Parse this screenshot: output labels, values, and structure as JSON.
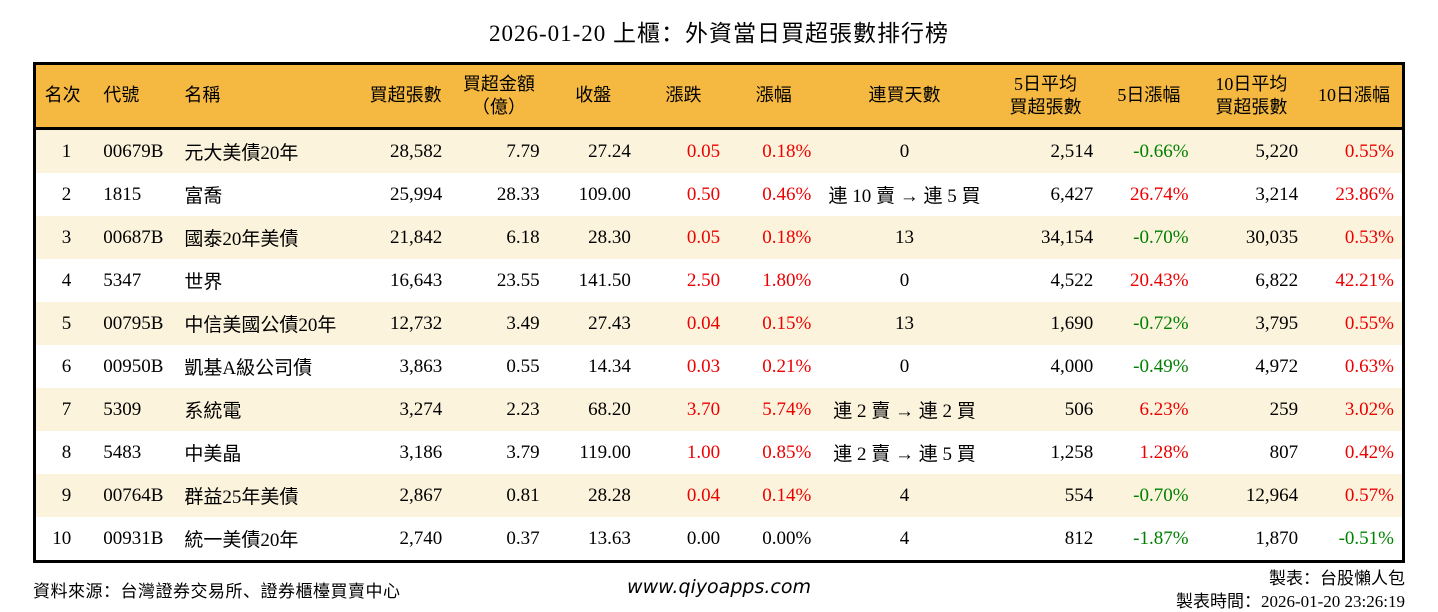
{
  "title": "2026-01-20 上櫃：外資當日買超張數排行榜",
  "colors": {
    "header_bg": "#F5B942",
    "stripe_bg": "#FCF3DC",
    "up_red": "#EC0000",
    "down_green": "#008000",
    "border": "#000000"
  },
  "table": {
    "headers": [
      "名次",
      "代號",
      "名稱",
      "買超張數",
      "買超金額\n（億）",
      "收盤",
      "漲跌",
      "漲幅",
      "連買天數",
      "5日平均\n買超張數",
      "5日漲幅",
      "10日平均\n買超張數",
      "10日漲幅"
    ],
    "rows": [
      {
        "rank": "1",
        "code": "00679B",
        "name": "元大美債20年",
        "vol": "28,582",
        "amt": "7.79",
        "close": "27.24",
        "chg": "0.05",
        "chg_c": "up",
        "pct": "0.18%",
        "pct_c": "up",
        "streak": "0",
        "avg5": "2,514",
        "pct5": "-0.66%",
        "pct5_c": "down",
        "avg10": "5,220",
        "pct10": "0.55%",
        "pct10_c": "up"
      },
      {
        "rank": "2",
        "code": "1815",
        "name": "富喬",
        "vol": "25,994",
        "amt": "28.33",
        "close": "109.00",
        "chg": "0.50",
        "chg_c": "up",
        "pct": "0.46%",
        "pct_c": "up",
        "streak": "連 10 賣 → 連 5 買",
        "avg5": "6,427",
        "pct5": "26.74%",
        "pct5_c": "up",
        "avg10": "3,214",
        "pct10": "23.86%",
        "pct10_c": "up"
      },
      {
        "rank": "3",
        "code": "00687B",
        "name": "國泰20年美債",
        "vol": "21,842",
        "amt": "6.18",
        "close": "28.30",
        "chg": "0.05",
        "chg_c": "up",
        "pct": "0.18%",
        "pct_c": "up",
        "streak": "13",
        "avg5": "34,154",
        "pct5": "-0.70%",
        "pct5_c": "down",
        "avg10": "30,035",
        "pct10": "0.53%",
        "pct10_c": "up"
      },
      {
        "rank": "4",
        "code": "5347",
        "name": "世界",
        "vol": "16,643",
        "amt": "23.55",
        "close": "141.50",
        "chg": "2.50",
        "chg_c": "up",
        "pct": "1.80%",
        "pct_c": "up",
        "streak": "0",
        "avg5": "4,522",
        "pct5": "20.43%",
        "pct5_c": "up",
        "avg10": "6,822",
        "pct10": "42.21%",
        "pct10_c": "up"
      },
      {
        "rank": "5",
        "code": "00795B",
        "name": "中信美國公債20年",
        "vol": "12,732",
        "amt": "3.49",
        "close": "27.43",
        "chg": "0.04",
        "chg_c": "up",
        "pct": "0.15%",
        "pct_c": "up",
        "streak": "13",
        "avg5": "1,690",
        "pct5": "-0.72%",
        "pct5_c": "down",
        "avg10": "3,795",
        "pct10": "0.55%",
        "pct10_c": "up"
      },
      {
        "rank": "6",
        "code": "00950B",
        "name": "凱基A級公司債",
        "vol": "3,863",
        "amt": "0.55",
        "close": "14.34",
        "chg": "0.03",
        "chg_c": "up",
        "pct": "0.21%",
        "pct_c": "up",
        "streak": "0",
        "avg5": "4,000",
        "pct5": "-0.49%",
        "pct5_c": "down",
        "avg10": "4,972",
        "pct10": "0.63%",
        "pct10_c": "up"
      },
      {
        "rank": "7",
        "code": "5309",
        "name": "系統電",
        "vol": "3,274",
        "amt": "2.23",
        "close": "68.20",
        "chg": "3.70",
        "chg_c": "up",
        "pct": "5.74%",
        "pct_c": "up",
        "streak": "連 2 賣 → 連 2 買",
        "avg5": "506",
        "pct5": "6.23%",
        "pct5_c": "up",
        "avg10": "259",
        "pct10": "3.02%",
        "pct10_c": "up"
      },
      {
        "rank": "8",
        "code": "5483",
        "name": "中美晶",
        "vol": "3,186",
        "amt": "3.79",
        "close": "119.00",
        "chg": "1.00",
        "chg_c": "up",
        "pct": "0.85%",
        "pct_c": "up",
        "streak": "連 2 賣 → 連 5 買",
        "avg5": "1,258",
        "pct5": "1.28%",
        "pct5_c": "up",
        "avg10": "807",
        "pct10": "0.42%",
        "pct10_c": "up"
      },
      {
        "rank": "9",
        "code": "00764B",
        "name": "群益25年美債",
        "vol": "2,867",
        "amt": "0.81",
        "close": "28.28",
        "chg": "0.04",
        "chg_c": "up",
        "pct": "0.14%",
        "pct_c": "up",
        "streak": "4",
        "avg5": "554",
        "pct5": "-0.70%",
        "pct5_c": "down",
        "avg10": "12,964",
        "pct10": "0.57%",
        "pct10_c": "up"
      },
      {
        "rank": "10",
        "code": "00931B",
        "name": "統一美債20年",
        "vol": "2,740",
        "amt": "0.37",
        "close": "13.63",
        "chg": "0.00",
        "chg_c": "flat",
        "pct": "0.00%",
        "pct_c": "flat",
        "streak": "4",
        "avg5": "812",
        "pct5": "-1.87%",
        "pct5_c": "down",
        "avg10": "1,870",
        "pct10": "-0.51%",
        "pct10_c": "down"
      }
    ]
  },
  "footer": {
    "source": "資料來源：台灣證券交易所、證券櫃檯買賣中心",
    "website": "www.qiyoapps.com",
    "maker": "製表：台股懶人包",
    "made_time": "製表時間：2026-01-20 23:26:19"
  },
  "chart_data": {
    "type": "table",
    "title": "2026-01-20 上櫃：外資當日買超張數排行榜",
    "columns": [
      "名次",
      "代號",
      "名稱",
      "買超張數",
      "買超金額（億）",
      "收盤",
      "漲跌",
      "漲幅",
      "連買天數",
      "5日平均買超張數",
      "5日漲幅",
      "10日平均買超張數",
      "10日漲幅"
    ],
    "rows": [
      [
        "1",
        "00679B",
        "元大美債20年",
        "28,582",
        "7.79",
        "27.24",
        "0.05",
        "0.18%",
        "0",
        "2,514",
        "-0.66%",
        "5,220",
        "0.55%"
      ],
      [
        "2",
        "1815",
        "富喬",
        "25,994",
        "28.33",
        "109.00",
        "0.50",
        "0.46%",
        "連 10 賣 → 連 5 買",
        "6,427",
        "26.74%",
        "3,214",
        "23.86%"
      ],
      [
        "3",
        "00687B",
        "國泰20年美債",
        "21,842",
        "6.18",
        "28.30",
        "0.05",
        "0.18%",
        "13",
        "34,154",
        "-0.70%",
        "30,035",
        "0.53%"
      ],
      [
        "4",
        "5347",
        "世界",
        "16,643",
        "23.55",
        "141.50",
        "2.50",
        "1.80%",
        "0",
        "4,522",
        "20.43%",
        "6,822",
        "42.21%"
      ],
      [
        "5",
        "00795B",
        "中信美國公債20年",
        "12,732",
        "3.49",
        "27.43",
        "0.04",
        "0.15%",
        "13",
        "1,690",
        "-0.72%",
        "3,795",
        "0.55%"
      ],
      [
        "6",
        "00950B",
        "凱基A級公司債",
        "3,863",
        "0.55",
        "14.34",
        "0.03",
        "0.21%",
        "0",
        "4,000",
        "-0.49%",
        "4,972",
        "0.63%"
      ],
      [
        "7",
        "5309",
        "系統電",
        "3,274",
        "2.23",
        "68.20",
        "3.70",
        "5.74%",
        "連 2 賣 → 連 2 買",
        "506",
        "6.23%",
        "259",
        "3.02%"
      ],
      [
        "8",
        "5483",
        "中美晶",
        "3,186",
        "3.79",
        "119.00",
        "1.00",
        "0.85%",
        "連 2 賣 → 連 5 買",
        "1,258",
        "1.28%",
        "807",
        "0.42%"
      ],
      [
        "9",
        "00764B",
        "群益25年美債",
        "2,867",
        "0.81",
        "28.28",
        "0.04",
        "0.14%",
        "4",
        "554",
        "-0.70%",
        "12,964",
        "0.57%"
      ],
      [
        "10",
        "00931B",
        "統一美債20年",
        "2,740",
        "0.37",
        "13.63",
        "0.00",
        "0.00%",
        "4",
        "812",
        "-1.87%",
        "1,870",
        "-0.51%"
      ]
    ]
  }
}
